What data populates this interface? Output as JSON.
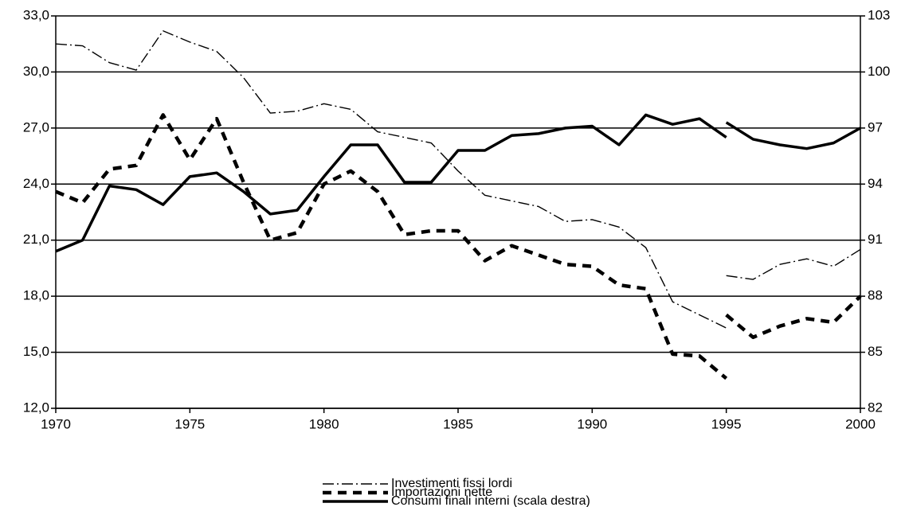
{
  "chart_data": {
    "type": "line",
    "x": [
      1970,
      1971,
      1972,
      1973,
      1974,
      1975,
      1976,
      1977,
      1978,
      1979,
      1980,
      1981,
      1982,
      1983,
      1984,
      1985,
      1986,
      1987,
      1988,
      1989,
      1990,
      1991,
      1992,
      1993,
      1994,
      1995,
      null,
      1995,
      1996,
      1997,
      1998,
      1999,
      2000
    ],
    "xlim": [
      1970,
      2000
    ],
    "xticks": [
      1970,
      1975,
      1980,
      1985,
      1990,
      1995,
      2000
    ],
    "ylim": [
      12,
      33
    ],
    "yticks": [
      {
        "value": 12,
        "label": "12,0"
      },
      {
        "value": 15,
        "label": "15,0"
      },
      {
        "value": 18,
        "label": "18,0"
      },
      {
        "value": 21,
        "label": "21,0"
      },
      {
        "value": 24,
        "label": "24,0"
      },
      {
        "value": 27,
        "label": "27,0"
      },
      {
        "value": 30,
        "label": "30,0"
      },
      {
        "value": 33,
        "label": "33,0"
      }
    ],
    "y2lim": [
      82,
      103
    ],
    "y2ticks": [
      82,
      85,
      88,
      91,
      94,
      97,
      100,
      103
    ],
    "grid": true,
    "legend": "bottom",
    "series": [
      {
        "name": "Investimenti fissi lordi",
        "color": "#000000",
        "line_style": "dash-dot",
        "values": [
          31.5,
          31.4,
          30.5,
          30.1,
          32.2,
          31.6,
          31.1,
          29.7,
          27.8,
          27.9,
          28.3,
          28.0,
          26.8,
          26.5,
          26.2,
          24.7,
          23.4,
          23.1,
          22.8,
          22.0,
          22.1,
          21.7,
          20.6,
          17.7,
          17.0,
          16.3,
          null,
          19.1,
          18.9,
          19.7,
          20.0,
          19.6,
          20.5
        ]
      },
      {
        "name": "Importazioni nette",
        "color": "#000000",
        "line_style": "dashed",
        "values": [
          23.6,
          23.0,
          24.8,
          25.0,
          27.7,
          25.3,
          27.5,
          24.1,
          21.0,
          21.4,
          24.0,
          24.7,
          23.6,
          21.3,
          21.5,
          21.5,
          19.9,
          20.7,
          20.2,
          19.7,
          19.6,
          18.6,
          18.4,
          14.9,
          14.8,
          13.6,
          null,
          17.0,
          15.8,
          16.4,
          16.8,
          16.6,
          18.0
        ]
      },
      {
        "name": "Consumi finali interni (scala destra)",
        "color": "#000000",
        "line_style": "solid",
        "axis": "y2",
        "values": [
          90.4,
          91.0,
          93.9,
          93.7,
          92.9,
          94.4,
          94.6,
          93.6,
          92.4,
          92.6,
          94.4,
          96.1,
          96.1,
          94.1,
          94.1,
          95.8,
          95.8,
          96.6,
          96.7,
          97.0,
          97.1,
          96.1,
          97.7,
          97.2,
          97.5,
          96.5,
          null,
          97.3,
          96.4,
          96.1,
          95.9,
          96.2,
          97.0
        ]
      }
    ]
  }
}
